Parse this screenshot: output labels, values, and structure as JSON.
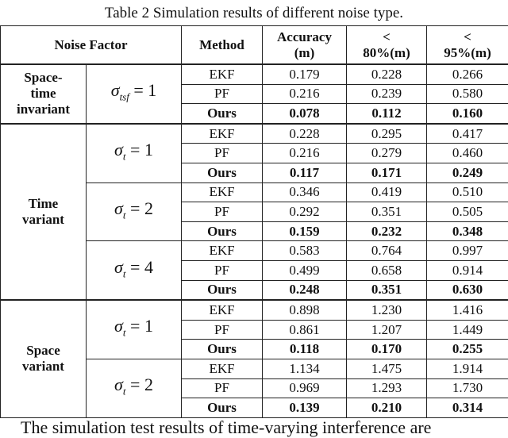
{
  "caption": "Table 2 Simulation results of different noise type.",
  "header": {
    "noise_factor": "Noise Factor",
    "method": "Method",
    "columns": [
      [
        "Accuracy",
        "(m)"
      ],
      [
        "<",
        "80%(m)"
      ],
      [
        "<",
        "95%(m)"
      ]
    ]
  },
  "groups": [
    {
      "label": [
        "Space-",
        "time",
        "invariant"
      ],
      "subgroups": [
        {
          "factor": {
            "symbol": "σ",
            "subscript": "tsf",
            "rhs": "= 1"
          },
          "rows": [
            {
              "method": "EKF",
              "values": [
                "0.179",
                "0.228",
                "0.266"
              ]
            },
            {
              "method": "PF",
              "values": [
                "0.216",
                "0.239",
                "0.580"
              ]
            },
            {
              "method": "Ours",
              "values": [
                "0.078",
                "0.112",
                "0.160"
              ]
            }
          ]
        }
      ]
    },
    {
      "label": [
        "Time",
        "variant"
      ],
      "subgroups": [
        {
          "factor": {
            "symbol": "σ",
            "subscript": "t",
            "rhs": "= 1"
          },
          "rows": [
            {
              "method": "EKF",
              "values": [
                "0.228",
                "0.295",
                "0.417"
              ]
            },
            {
              "method": "PF",
              "values": [
                "0.216",
                "0.279",
                "0.460"
              ]
            },
            {
              "method": "Ours",
              "values": [
                "0.117",
                "0.171",
                "0.249"
              ]
            }
          ]
        },
        {
          "factor": {
            "symbol": "σ",
            "subscript": "t",
            "rhs": "= 2"
          },
          "rows": [
            {
              "method": "EKF",
              "values": [
                "0.346",
                "0.419",
                "0.510"
              ]
            },
            {
              "method": "PF",
              "values": [
                "0.292",
                "0.351",
                "0.505"
              ]
            },
            {
              "method": "Ours",
              "values": [
                "0.159",
                "0.232",
                "0.348"
              ]
            }
          ]
        },
        {
          "factor": {
            "symbol": "σ",
            "subscript": "t",
            "rhs": "= 4"
          },
          "rows": [
            {
              "method": "EKF",
              "values": [
                "0.583",
                "0.764",
                "0.997"
              ]
            },
            {
              "method": "PF",
              "values": [
                "0.499",
                "0.658",
                "0.914"
              ]
            },
            {
              "method": "Ours",
              "values": [
                "0.248",
                "0.351",
                "0.630"
              ]
            }
          ]
        }
      ]
    },
    {
      "label": [
        "Space",
        "variant"
      ],
      "subgroups": [
        {
          "factor": {
            "symbol": "σ",
            "subscript": "t",
            "rhs": "= 1"
          },
          "rows": [
            {
              "method": "EKF",
              "values": [
                "0.898",
                "1.230",
                "1.416"
              ]
            },
            {
              "method": "PF",
              "values": [
                "0.861",
                "1.207",
                "1.449"
              ]
            },
            {
              "method": "Ours",
              "values": [
                "0.118",
                "0.170",
                "0.255"
              ]
            }
          ]
        },
        {
          "factor": {
            "symbol": "σ",
            "subscript": "t",
            "rhs": "= 2"
          },
          "rows": [
            {
              "method": "EKF",
              "values": [
                "1.134",
                "1.475",
                "1.914"
              ]
            },
            {
              "method": "PF",
              "values": [
                "0.969",
                "1.293",
                "1.730"
              ]
            },
            {
              "method": "Ours",
              "values": [
                "0.139",
                "0.210",
                "0.314"
              ]
            }
          ]
        }
      ]
    }
  ],
  "footer_text": "The simulation test results of time-varying interference are"
}
